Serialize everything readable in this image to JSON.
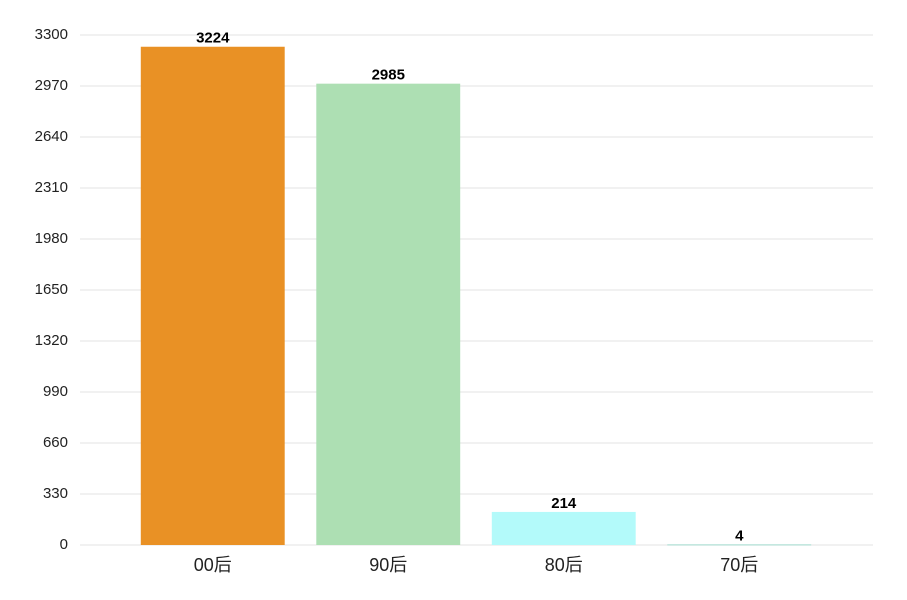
{
  "chart_data": {
    "type": "bar",
    "categories": [
      "00后",
      "90后",
      "80后",
      "70后"
    ],
    "values": [
      3224,
      2985,
      214,
      4
    ],
    "colors": [
      "#e99125",
      "#addfb3",
      "#b3fafa",
      "#9fd9cc"
    ],
    "ylim": [
      0,
      3300
    ],
    "yticks": [
      0,
      330,
      660,
      990,
      1320,
      1650,
      1980,
      2310,
      2640,
      2970,
      3300
    ],
    "grid": true
  }
}
